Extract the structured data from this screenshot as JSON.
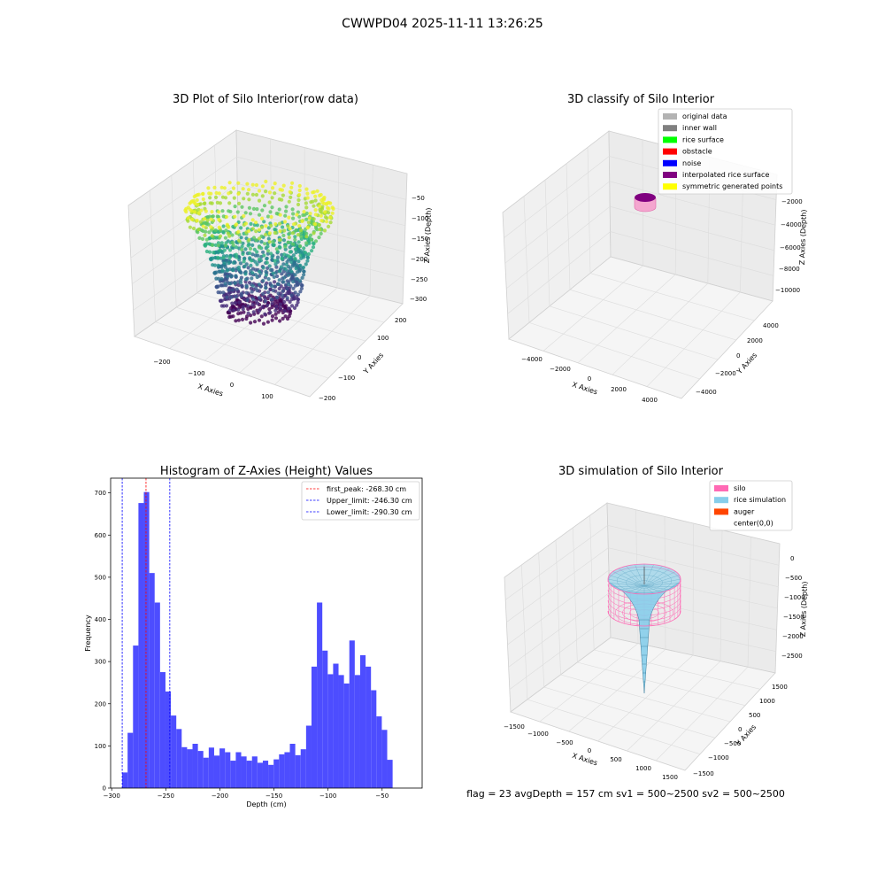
{
  "figure": {
    "suptitle": "CWWPD04 2025-11-11 13:26:25",
    "status_line": "flag = 23  avgDepth = 157 cm  sv1 = 500~2500  sv2 = 500~2500"
  },
  "chart_data": [
    {
      "type": "scatter",
      "title": "3D Plot of Silo Interior(row data)",
      "xlabel": "X Axies",
      "ylabel": "Y Axies",
      "zlabel": "Z Axies (Depth)",
      "x_ticks": [
        "−200",
        "−100",
        "0",
        "100"
      ],
      "y_ticks": [
        "−200",
        "−100",
        "0",
        "100",
        "200"
      ],
      "z_ticks": [
        "−50",
        "−100",
        "−150",
        "−200",
        "−250",
        "−300"
      ],
      "zlim": [
        -310,
        -20
      ],
      "colormap": "viridis",
      "series": [
        {
          "ring_z": -55,
          "radius": 190,
          "color": "#ecf129"
        },
        {
          "ring_z": -75,
          "radius": 185,
          "color": "#a6db35"
        },
        {
          "ring_z": -100,
          "radius": 160,
          "color": "#5cc763"
        },
        {
          "ring_z": -130,
          "radius": 140,
          "color": "#2bb07f"
        },
        {
          "ring_z": -160,
          "radius": 125,
          "color": "#21918c"
        },
        {
          "ring_z": -190,
          "radius": 115,
          "color": "#2c728e"
        },
        {
          "ring_z": -220,
          "radius": 110,
          "color": "#3b528b"
        },
        {
          "ring_z": -250,
          "radius": 100,
          "color": "#472d7b"
        },
        {
          "ring_z": -275,
          "radius": 80,
          "color": "#440154"
        }
      ]
    },
    {
      "type": "scatter",
      "title": "3D classify of Silo Interior",
      "xlabel": "X Axies",
      "ylabel": "Y Axies",
      "zlabel": "Z Axies (Depth)",
      "x_ticks": [
        "−4000",
        "−2000",
        "0",
        "2000",
        "4000"
      ],
      "y_ticks": [
        "−4000",
        "−2000",
        "0",
        "2000",
        "4000"
      ],
      "z_ticks": [
        "−2000",
        "−4000",
        "−6000",
        "−8000",
        "−10000"
      ],
      "legend_position": "top-right",
      "legend": [
        {
          "label": "original data",
          "color": "#b3b3b3"
        },
        {
          "label": "inner wall",
          "color": "#808080"
        },
        {
          "label": "rice surface",
          "color": "#00ff00"
        },
        {
          "label": "obstacle",
          "color": "#ff0000"
        },
        {
          "label": "noise",
          "color": "#0000ff"
        },
        {
          "label": "interpolated rice surface",
          "color": "#800080"
        },
        {
          "label": "symmetric generated points",
          "color": "#ffff00"
        }
      ]
    },
    {
      "type": "bar",
      "title": "Histogram of Z-Axies (Height) Values",
      "xlabel": "Depth (cm)",
      "ylabel": "Frequency",
      "xlim": [
        -301,
        -13
      ],
      "ylim": [
        0,
        735
      ],
      "x_ticks": [
        -300,
        -250,
        -200,
        -150,
        -100,
        -50
      ],
      "y_ticks": [
        0,
        100,
        200,
        300,
        400,
        500,
        600,
        700
      ],
      "bar_color": "#4d4dff",
      "bin_start": -290.3,
      "bin_width": 5,
      "values": [
        37,
        131,
        338,
        676,
        702,
        510,
        440,
        275,
        229,
        172,
        140,
        97,
        92,
        105,
        88,
        72,
        96,
        77,
        94,
        85,
        65,
        85,
        75,
        65,
        75,
        60,
        65,
        55,
        68,
        80,
        85,
        105,
        78,
        92,
        148,
        288,
        440,
        326,
        270,
        295,
        268,
        248,
        350,
        268,
        315,
        288,
        232,
        170,
        138,
        67
      ],
      "reference_lines": [
        {
          "x": -268.3,
          "label": "first_peak: -268.30 cm",
          "color": "#ff0000"
        },
        {
          "x": -246.3,
          "label": "Upper_limit: -246.30 cm",
          "color": "#0000ff"
        },
        {
          "x": -290.3,
          "label": "Lower_limit: -290.30 cm",
          "color": "#0000ff"
        }
      ],
      "legend_position": "top-right"
    },
    {
      "type": "surface",
      "title": "3D simulation of Silo Interior",
      "xlabel": "X Axies",
      "ylabel": "Y Axies",
      "zlabel": "Z Axies (Depth)",
      "x_ticks": [
        "−1500",
        "−1000",
        "−500",
        "0",
        "500",
        "1000",
        "1500"
      ],
      "y_ticks": [
        "−1500",
        "−1000",
        "−500",
        "0",
        "500",
        "1000",
        "1500"
      ],
      "z_ticks": [
        "0",
        "−500",
        "−1000",
        "−1500",
        "−2000",
        "−2500"
      ],
      "legend_position": "top-right",
      "legend": [
        {
          "label": "silo",
          "color": "#ff69b4"
        },
        {
          "label": "rice simulation",
          "color": "#87ceeb"
        },
        {
          "label": "auger",
          "color": "#ff4500"
        },
        {
          "label": "center(0,0)",
          "color": "#ffffff"
        }
      ]
    }
  ]
}
